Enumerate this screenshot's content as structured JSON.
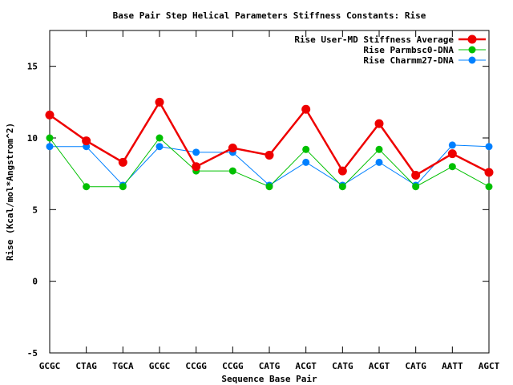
{
  "chart_data": {
    "type": "line",
    "title": "Base Pair Step Helical Parameters Stiffness Constants: Rise",
    "xlabel": "Sequence Base Pair",
    "ylabel": "Rise (Kcal/mol*Angstrom^2)",
    "ylim": [
      -5,
      17.5
    ],
    "yticks": [
      -5,
      0,
      5,
      10,
      15
    ],
    "categories": [
      "GCGC",
      "CTAG",
      "TGCA",
      "GCGC",
      "CCGG",
      "CCGG",
      "CATG",
      "ACGT",
      "CATG",
      "ACGT",
      "CATG",
      "AATT",
      "AGCT"
    ],
    "legend_position": "top-right",
    "grid": false,
    "series": [
      {
        "name": "Rise User-MD Stiffness Average",
        "color": "#ee0000",
        "values": [
          11.6,
          9.8,
          8.3,
          12.5,
          8.0,
          9.3,
          8.8,
          12.0,
          7.7,
          11.0,
          7.4,
          8.9,
          7.6
        ]
      },
      {
        "name": "Rise Parmbsc0-DNA",
        "color": "#00c000",
        "values": [
          10.0,
          6.6,
          6.6,
          10.0,
          7.7,
          7.7,
          6.6,
          9.2,
          6.6,
          9.2,
          6.6,
          8.0,
          6.6
        ]
      },
      {
        "name": "Rise Charmm27-DNA",
        "color": "#0080ff",
        "values": [
          9.4,
          9.4,
          6.7,
          9.4,
          9.0,
          9.0,
          6.7,
          8.3,
          6.7,
          8.3,
          6.7,
          9.5,
          9.4
        ]
      }
    ]
  }
}
